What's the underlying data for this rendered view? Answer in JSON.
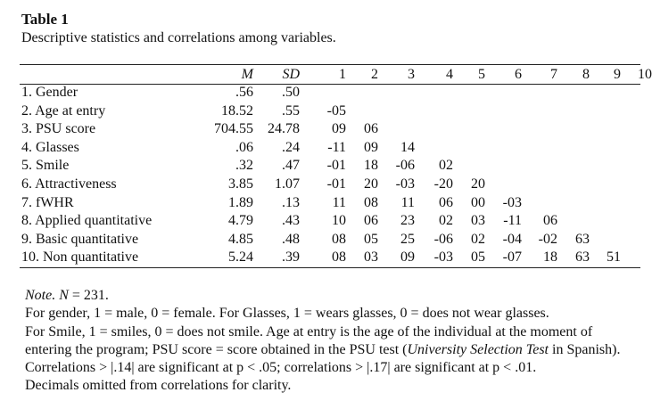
{
  "caption": {
    "label": "Table 1",
    "title": "Descriptive statistics and correlations among variables."
  },
  "table": {
    "headers": {
      "variable": "",
      "m": "M",
      "sd": "SD",
      "numbers": [
        "1",
        "2",
        "3",
        "4",
        "5",
        "6",
        "7",
        "8",
        "9",
        "10"
      ]
    },
    "rows": [
      {
        "label": "1. Gender",
        "m": ".56",
        "sd": ".50",
        "r": [
          "",
          "",
          "",
          "",
          "",
          "",
          "",
          "",
          "",
          ""
        ]
      },
      {
        "label": "2. Age at entry",
        "m": "18.52",
        "sd": ".55",
        "r": [
          "-05",
          "",
          "",
          "",
          "",
          "",
          "",
          "",
          "",
          ""
        ]
      },
      {
        "label": "3. PSU score",
        "m": "704.55",
        "sd": "24.78",
        "r": [
          "09",
          "06",
          "",
          "",
          "",
          "",
          "",
          "",
          "",
          ""
        ]
      },
      {
        "label": "4. Glasses",
        "m": ".06",
        "sd": ".24",
        "r": [
          "-11",
          "09",
          "14",
          "",
          "",
          "",
          "",
          "",
          "",
          ""
        ]
      },
      {
        "label": "5. Smile",
        "m": ".32",
        "sd": ".47",
        "r": [
          "-01",
          "18",
          "-06",
          "02",
          "",
          "",
          "",
          "",
          "",
          ""
        ]
      },
      {
        "label": "6. Attractiveness",
        "m": "3.85",
        "sd": "1.07",
        "r": [
          "-01",
          "20",
          "-03",
          "-20",
          "20",
          "",
          "",
          "",
          "",
          ""
        ]
      },
      {
        "label": "7. fWHR",
        "m": "1.89",
        "sd": ".13",
        "r": [
          "11",
          "08",
          "11",
          "06",
          "00",
          "-03",
          "",
          "",
          "",
          ""
        ]
      },
      {
        "label": "8. Applied quantitative",
        "m": "4.79",
        "sd": ".43",
        "r": [
          "10",
          "06",
          "23",
          "02",
          "03",
          "-11",
          "06",
          "",
          "",
          ""
        ]
      },
      {
        "label": "9. Basic quantitative",
        "m": "4.85",
        "sd": ".48",
        "r": [
          "08",
          "05",
          "25",
          "-06",
          "02",
          "-04",
          "-02",
          "63",
          "",
          ""
        ]
      },
      {
        "label": "10. Non quantitative",
        "m": "5.24",
        "sd": ".39",
        "r": [
          "08",
          "03",
          "09",
          "-03",
          "05",
          "-07",
          "18",
          "63",
          "51",
          ""
        ]
      }
    ]
  },
  "notes": {
    "note_label": "Note.",
    "n_var": "N",
    "n_value": " = 231.",
    "line2": "For gender, 1 = male, 0 = female. For Glasses, 1 = wears glasses, 0 = does not wear glasses.",
    "line3_a": "For Smile, 1 = smiles, 0 = does not smile. Age at entry is the age of the individual at the moment of entering the program; PSU score = score obtained in the PSU test (",
    "line3_italic": "University Selection Test",
    "line3_b": " in Spanish).",
    "line4": "Correlations > |.14| are significant at p < .05; correlations > |.17| are significant at p < .01.",
    "line5": "Decimals omitted from correlations for clarity."
  }
}
